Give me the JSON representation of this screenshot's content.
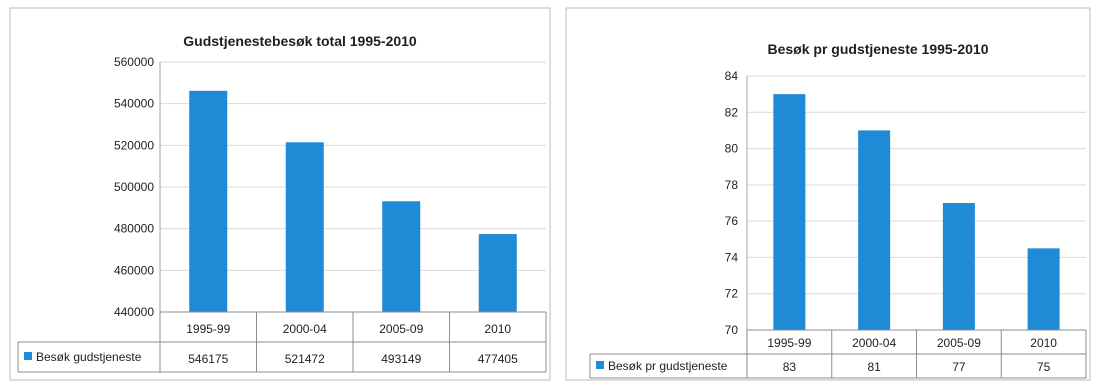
{
  "colors": {
    "bar": "#1f8ad6",
    "frame": "#b9b9b9",
    "grid": "#d9d9d9"
  },
  "chart_data": [
    {
      "type": "bar",
      "title": "Gudstjenestebesøk total 1995-2010",
      "categories": [
        "1995-99",
        "2000-04",
        "2005-09",
        "2010"
      ],
      "series": [
        {
          "name": "Besøk gudstjeneste",
          "values": [
            546175,
            521472,
            493149,
            477405
          ]
        }
      ],
      "value_labels": [
        "546175",
        "521472",
        "493149",
        "477405"
      ],
      "ylim": [
        440000,
        560000
      ],
      "yticks": [
        "560000",
        "540000",
        "520000",
        "500000",
        "480000",
        "460000",
        "440000"
      ],
      "grid": true,
      "legend": "data-table",
      "xlabel": "",
      "ylabel": ""
    },
    {
      "type": "bar",
      "title": "Besøk pr gudstjeneste 1995-2010",
      "categories": [
        "1995-99",
        "2000-04",
        "2005-09",
        "2010"
      ],
      "series": [
        {
          "name": "Besøk pr gudstjeneste",
          "values": [
            83,
            81,
            77,
            74.5
          ]
        }
      ],
      "value_labels": [
        "83",
        "81",
        "77",
        "75"
      ],
      "ylim": [
        70,
        84
      ],
      "yticks": [
        "84",
        "82",
        "80",
        "78",
        "76",
        "74",
        "72",
        "70"
      ],
      "grid": true,
      "legend": "data-table",
      "xlabel": "",
      "ylabel": ""
    }
  ]
}
